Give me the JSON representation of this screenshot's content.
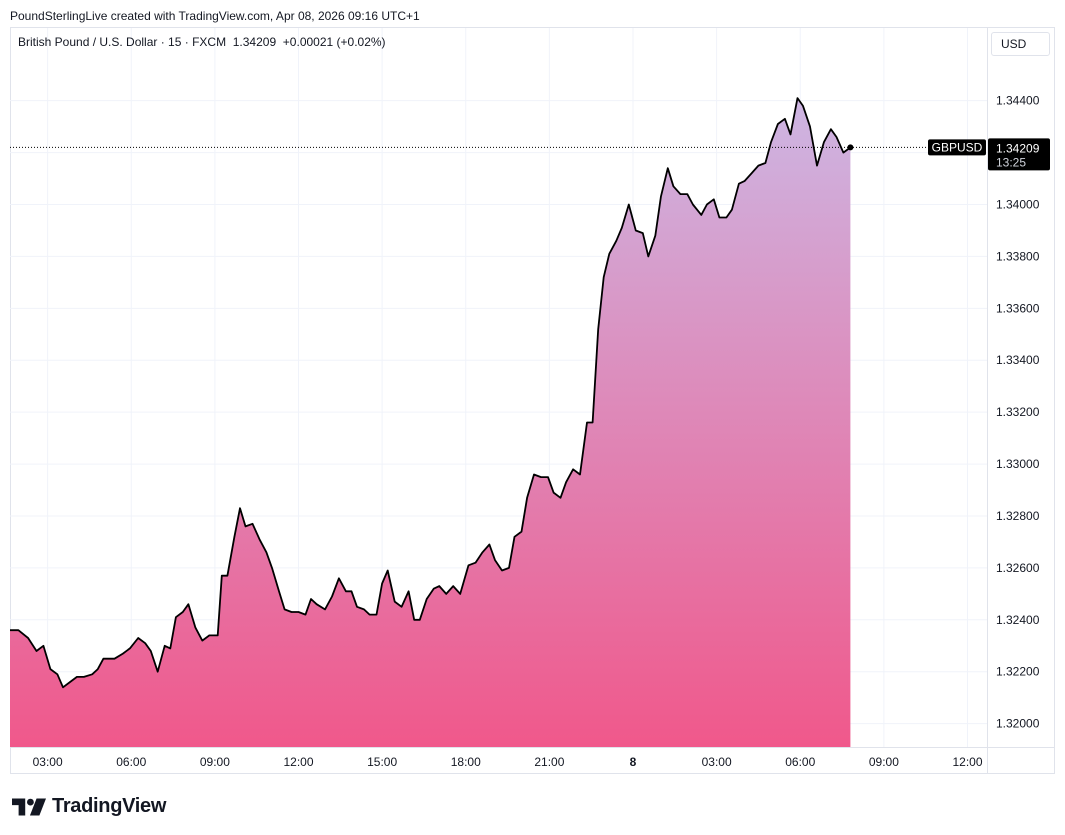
{
  "credit": "PoundSterlingLive created with TradingView.com, Apr 08, 2026 09:16 UTC+1",
  "legend": {
    "symbol": "British Pound / U.S. Dollar · 15 · FXCM",
    "price": "1.34209",
    "change": "+0.00021 (+0.02%)"
  },
  "currency": "USD",
  "brand": "TradingView",
  "colors": {
    "line": "#000000",
    "fill_top": "#cdb6e3",
    "fill_bottom": "#f0588b",
    "grid": "#f0f3fa",
    "axis_text": "#131722",
    "label_bg": "#000000",
    "label_text": "#ffffff"
  },
  "chart_data": {
    "type": "area",
    "series_label": "GBPUSD",
    "last_price": "1.34209",
    "countdown": "13:25",
    "ylim": [
      1.3191,
      1.3468
    ],
    "y_ticks": [
      "1.32000",
      "1.32200",
      "1.32400",
      "1.32600",
      "1.32800",
      "1.33000",
      "1.33200",
      "1.33400",
      "1.33600",
      "1.33800",
      "1.34000",
      "1.34200",
      "1.34400"
    ],
    "y_tick_values": [
      1.32,
      1.322,
      1.324,
      1.326,
      1.328,
      1.33,
      1.332,
      1.334,
      1.336,
      1.338,
      1.34,
      1.342,
      1.344
    ],
    "x_unit": "hours from Apr 07 00:00",
    "xlim": [
      1.65,
      36.7
    ],
    "x_ticks": [
      {
        "label": "03:00",
        "h": 3
      },
      {
        "label": "06:00",
        "h": 6
      },
      {
        "label": "09:00",
        "h": 9
      },
      {
        "label": "12:00",
        "h": 12
      },
      {
        "label": "15:00",
        "h": 15
      },
      {
        "label": "18:00",
        "h": 18
      },
      {
        "label": "21:00",
        "h": 21
      },
      {
        "label": "8",
        "h": 24,
        "bold": true
      },
      {
        "label": "03:00",
        "h": 27
      },
      {
        "label": "06:00",
        "h": 30
      },
      {
        "label": "09:00",
        "h": 33
      },
      {
        "label": "12:00",
        "h": 36
      }
    ],
    "points": [
      [
        1.65,
        1.3236
      ],
      [
        1.95,
        1.3236
      ],
      [
        2.3,
        1.3233
      ],
      [
        2.6,
        1.3228
      ],
      [
        2.85,
        1.323
      ],
      [
        3.1,
        1.3221
      ],
      [
        3.35,
        1.3219
      ],
      [
        3.55,
        1.3214
      ],
      [
        3.8,
        1.3216
      ],
      [
        4.05,
        1.3218
      ],
      [
        4.3,
        1.3218
      ],
      [
        4.6,
        1.3219
      ],
      [
        4.8,
        1.3221
      ],
      [
        5.0,
        1.3225
      ],
      [
        5.4,
        1.3225
      ],
      [
        5.7,
        1.3227
      ],
      [
        5.95,
        1.3229
      ],
      [
        6.25,
        1.3233
      ],
      [
        6.5,
        1.3231
      ],
      [
        6.7,
        1.3228
      ],
      [
        6.95,
        1.322
      ],
      [
        7.2,
        1.323
      ],
      [
        7.4,
        1.3229
      ],
      [
        7.6,
        1.3241
      ],
      [
        7.85,
        1.3243
      ],
      [
        8.05,
        1.3246
      ],
      [
        8.3,
        1.3237
      ],
      [
        8.55,
        1.3232
      ],
      [
        8.8,
        1.3234
      ],
      [
        9.1,
        1.3234
      ],
      [
        9.25,
        1.3257
      ],
      [
        9.45,
        1.3257
      ],
      [
        9.7,
        1.3272
      ],
      [
        9.9,
        1.3283
      ],
      [
        10.1,
        1.3276
      ],
      [
        10.35,
        1.3277
      ],
      [
        10.6,
        1.3271
      ],
      [
        10.85,
        1.3266
      ],
      [
        11.05,
        1.326
      ],
      [
        11.3,
        1.3251
      ],
      [
        11.5,
        1.3244
      ],
      [
        11.75,
        1.3243
      ],
      [
        12.0,
        1.3243
      ],
      [
        12.25,
        1.3242
      ],
      [
        12.45,
        1.3248
      ],
      [
        12.65,
        1.3246
      ],
      [
        12.95,
        1.3244
      ],
      [
        13.2,
        1.3249
      ],
      [
        13.45,
        1.3256
      ],
      [
        13.7,
        1.3251
      ],
      [
        13.9,
        1.3251
      ],
      [
        14.1,
        1.3245
      ],
      [
        14.35,
        1.3244
      ],
      [
        14.55,
        1.3242
      ],
      [
        14.8,
        1.3242
      ],
      [
        15.0,
        1.3254
      ],
      [
        15.2,
        1.3259
      ],
      [
        15.45,
        1.3247
      ],
      [
        15.7,
        1.3245
      ],
      [
        15.95,
        1.3251
      ],
      [
        16.15,
        1.324
      ],
      [
        16.35,
        1.324
      ],
      [
        16.6,
        1.3248
      ],
      [
        16.85,
        1.3252
      ],
      [
        17.05,
        1.3253
      ],
      [
        17.3,
        1.325
      ],
      [
        17.55,
        1.3253
      ],
      [
        17.8,
        1.325
      ],
      [
        18.1,
        1.3261
      ],
      [
        18.35,
        1.3262
      ],
      [
        18.6,
        1.3266
      ],
      [
        18.85,
        1.3269
      ],
      [
        19.05,
        1.3263
      ],
      [
        19.3,
        1.3259
      ],
      [
        19.55,
        1.326
      ],
      [
        19.75,
        1.3272
      ],
      [
        20.0,
        1.3274
      ],
      [
        20.2,
        1.3287
      ],
      [
        20.45,
        1.3296
      ],
      [
        20.7,
        1.3295
      ],
      [
        20.95,
        1.3295
      ],
      [
        21.15,
        1.3289
      ],
      [
        21.4,
        1.3287
      ],
      [
        21.6,
        1.3293
      ],
      [
        21.85,
        1.3298
      ],
      [
        22.1,
        1.3296
      ],
      [
        22.35,
        1.3316
      ],
      [
        22.55,
        1.3316
      ],
      [
        22.75,
        1.3352
      ],
      [
        22.95,
        1.3372
      ],
      [
        23.15,
        1.3381
      ],
      [
        23.4,
        1.3386
      ],
      [
        23.6,
        1.3391
      ],
      [
        23.85,
        1.34
      ],
      [
        24.1,
        1.339
      ],
      [
        24.35,
        1.3389
      ],
      [
        24.55,
        1.338
      ],
      [
        24.8,
        1.3388
      ],
      [
        25.0,
        1.3403
      ],
      [
        25.25,
        1.3414
      ],
      [
        25.45,
        1.3407
      ],
      [
        25.7,
        1.3404
      ],
      [
        25.95,
        1.3404
      ],
      [
        26.15,
        1.34
      ],
      [
        26.45,
        1.3396
      ],
      [
        26.65,
        1.34
      ],
      [
        26.9,
        1.3402
      ],
      [
        27.1,
        1.3395
      ],
      [
        27.35,
        1.3395
      ],
      [
        27.55,
        1.3398
      ],
      [
        27.8,
        1.3408
      ],
      [
        28.0,
        1.3409
      ],
      [
        28.25,
        1.3412
      ],
      [
        28.5,
        1.3415
      ],
      [
        28.75,
        1.3416
      ],
      [
        28.95,
        1.3424
      ],
      [
        29.2,
        1.3431
      ],
      [
        29.45,
        1.3433
      ],
      [
        29.65,
        1.3427
      ],
      [
        29.9,
        1.3441
      ],
      [
        30.1,
        1.3438
      ],
      [
        30.35,
        1.343
      ],
      [
        30.6,
        1.3415
      ],
      [
        30.85,
        1.3424
      ],
      [
        31.1,
        1.3429
      ],
      [
        31.3,
        1.3426
      ],
      [
        31.55,
        1.342
      ],
      [
        31.8,
        1.3422
      ]
    ]
  }
}
